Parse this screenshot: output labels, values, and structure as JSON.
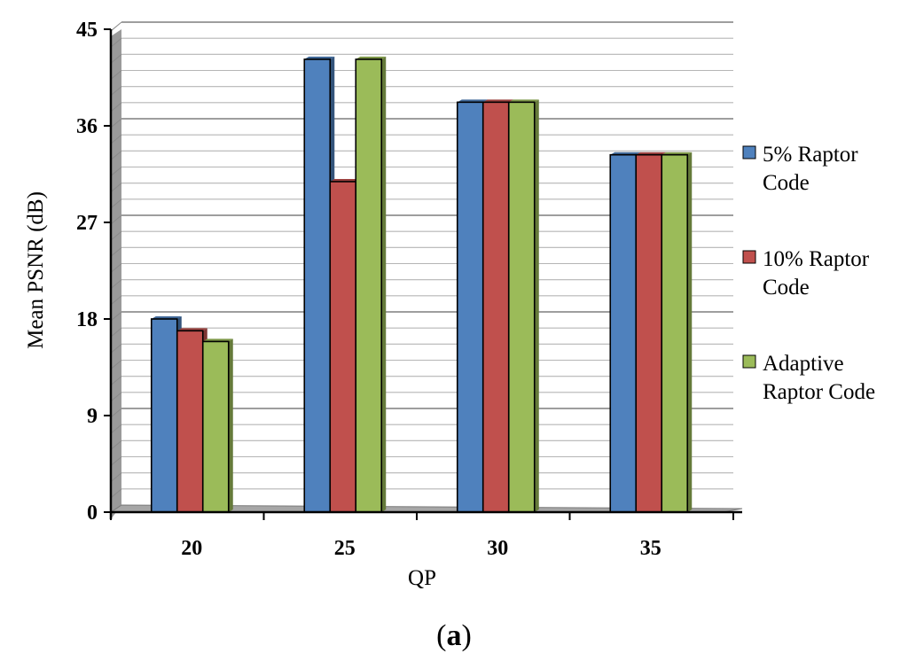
{
  "chart_data": {
    "type": "bar",
    "title": "",
    "xlabel": "QP",
    "ylabel": "Mean PSNR (dB)",
    "categories": [
      "20",
      "25",
      "30",
      "35"
    ],
    "yticks": [
      "0",
      "9",
      "18",
      "27",
      "36",
      "45"
    ],
    "ylim": [
      0,
      45
    ],
    "minor_grid_step": 1.5,
    "grid": true,
    "legend_position": "right",
    "series": [
      {
        "name": "5% Raptor Code",
        "legend_lines": [
          "5% Raptor",
          "Code"
        ],
        "color": "#4f81bd",
        "values": [
          18,
          42.2,
          38.2,
          33.3
        ]
      },
      {
        "name": "10% Raptor Code",
        "legend_lines": [
          "10% Raptor",
          "Code"
        ],
        "color": "#c0504d",
        "values": [
          16.9,
          30.8,
          38.2,
          33.3
        ]
      },
      {
        "name": "Adaptive Raptor Code",
        "legend_lines": [
          "Adaptive",
          "Raptor Code"
        ],
        "color": "#9bbb59",
        "values": [
          15.9,
          42.2,
          38.2,
          33.3
        ]
      }
    ]
  },
  "caption": {
    "open": "(",
    "label": "a",
    "close": ")"
  }
}
